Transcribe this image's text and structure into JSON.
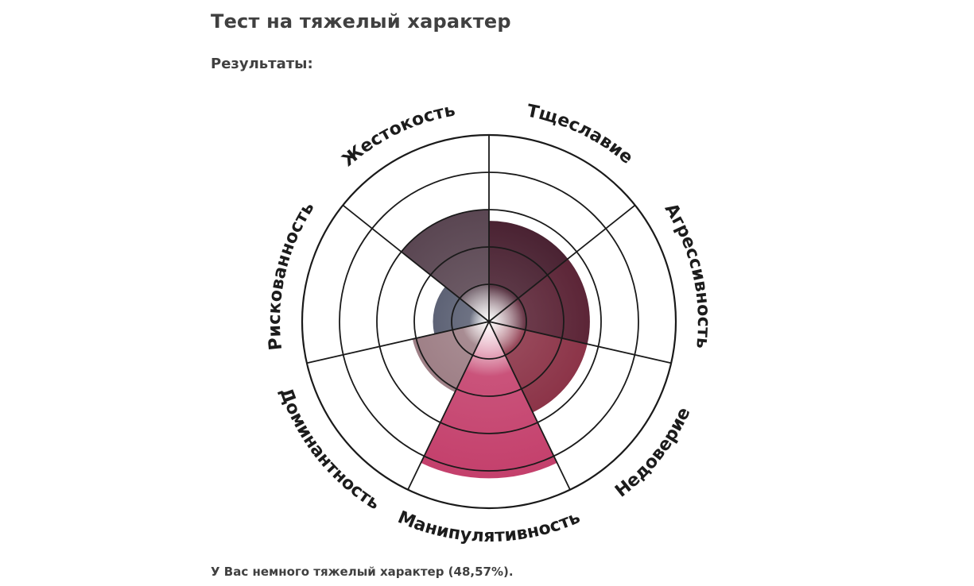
{
  "page": {
    "title": "Тест на тяжелый характер",
    "results_label": "Результаты:",
    "summary": "У Вас немного тяжелый характер (48,57%)."
  },
  "chart_data": {
    "type": "radial-bar",
    "rings": 5,
    "max": 5,
    "categories": [
      "Тщеславие",
      "Агрессивность",
      "Недоверие",
      "Манипулятивность",
      "Доминантность",
      "Рискованность",
      "Жестокость"
    ],
    "values": [
      2.7,
      2.7,
      2.7,
      4.2,
      2.1,
      1.5,
      3.0
    ],
    "colors": {
      "Тщеславие": "#4a2232",
      "Агрессивность": "#5c2537",
      "Недоверие": "#8c3448",
      "Манипулятивность": "#c4406c",
      "Доминантность": "#9e7f86",
      "Рискованность": "#5d6275",
      "Жестокость": "#5a4652"
    },
    "grid": true
  }
}
